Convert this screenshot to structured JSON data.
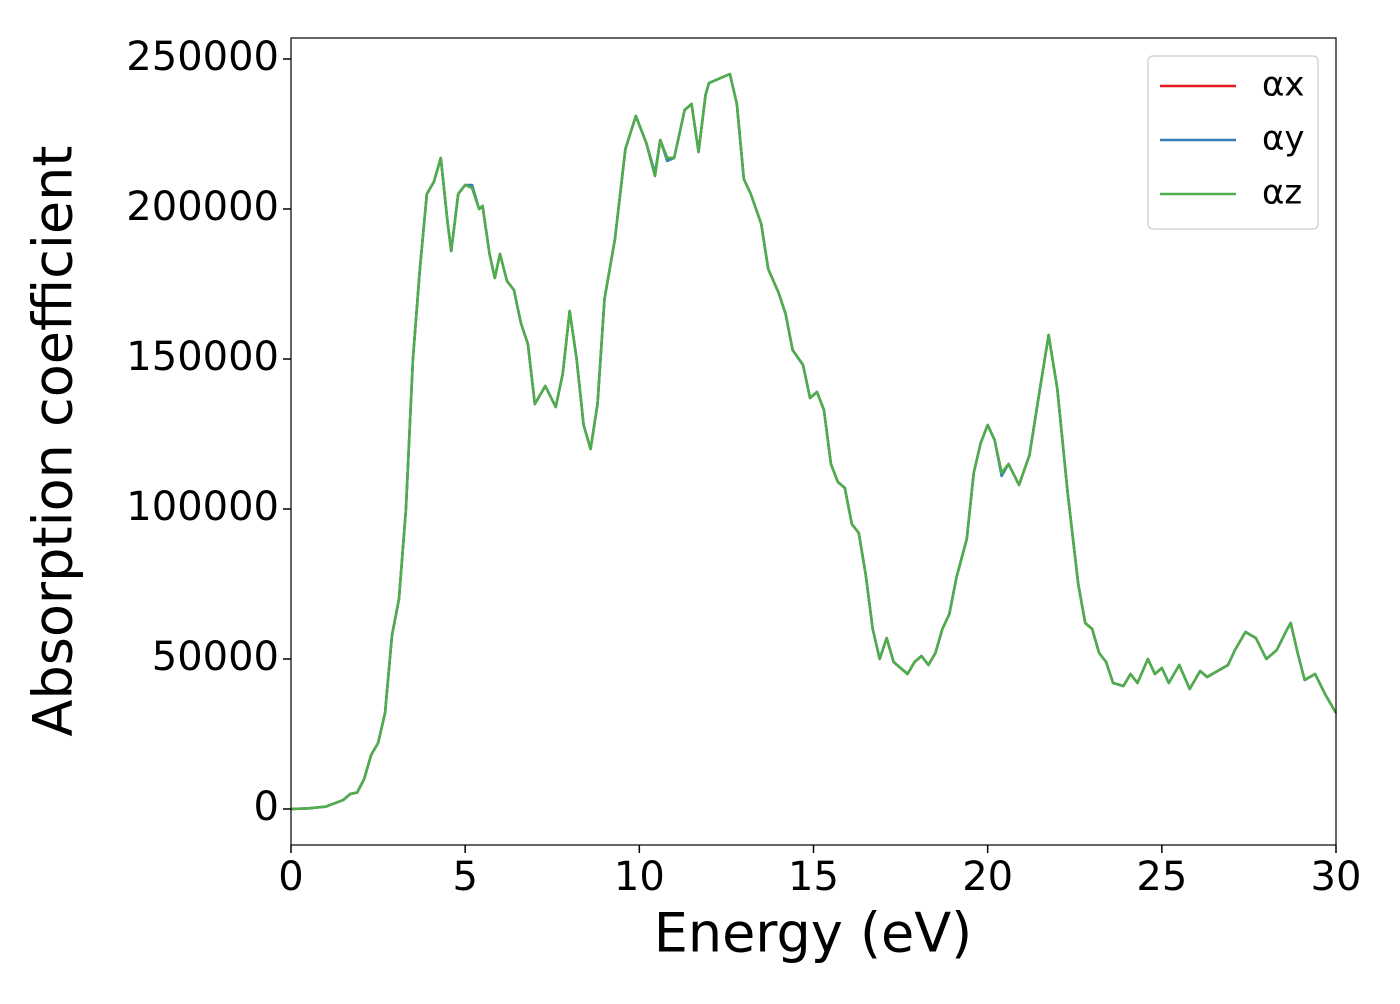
{
  "chart_data": {
    "type": "line",
    "xlabel": "Energy (eV)",
    "ylabel": "Absorption coefficient",
    "x": [
      0,
      0.5,
      1,
      1.5,
      1.7,
      1.9,
      2.1,
      2.3,
      2.5,
      2.7,
      2.9,
      3.1,
      3.3,
      3.5,
      3.7,
      3.9,
      4.1,
      4.3,
      4.5,
      4.6,
      4.8,
      5.0,
      5.2,
      5.4,
      5.5,
      5.7,
      5.85,
      6.0,
      6.2,
      6.4,
      6.6,
      6.8,
      7.0,
      7.3,
      7.6,
      7.8,
      8.0,
      8.2,
      8.4,
      8.6,
      8.8,
      9.0,
      9.3,
      9.6,
      9.9,
      10.1,
      10.2,
      10.45,
      10.6,
      10.8,
      11.0,
      11.3,
      11.5,
      11.7,
      11.9,
      12.0,
      12.2,
      12.6,
      12.8,
      13.0,
      13.2,
      13.5,
      13.7,
      14.0,
      14.2,
      14.4,
      14.7,
      14.9,
      15.1,
      15.3,
      15.5,
      15.7,
      15.9,
      16.1,
      16.3,
      16.5,
      16.7,
      16.9,
      17.1,
      17.3,
      17.5,
      17.7,
      17.9,
      18.1,
      18.3,
      18.5,
      18.7,
      18.9,
      19.1,
      19.4,
      19.6,
      19.8,
      20.0,
      20.2,
      20.4,
      20.6,
      20.9,
      21.2,
      21.5,
      21.75,
      22.0,
      22.3,
      22.6,
      22.8,
      23.0,
      23.2,
      23.4,
      23.6,
      23.9,
      24.1,
      24.3,
      24.6,
      24.8,
      25.0,
      25.2,
      25.5,
      25.8,
      26.1,
      26.3,
      26.6,
      26.9,
      27.1,
      27.4,
      27.7,
      28.0,
      28.3,
      28.6,
      28.7,
      28.9,
      29.1,
      29.4,
      29.7,
      30.0
    ],
    "series": [
      {
        "name": "αx",
        "color": "#e41a1c",
        "values": [
          0,
          200,
          800,
          3000,
          5000,
          5500,
          10000,
          18000,
          22000,
          32000,
          58000,
          70000,
          100000,
          150000,
          180000,
          205000,
          209000,
          217000,
          195000,
          186000,
          205000,
          208000,
          207000,
          200000,
          201000,
          185000,
          177000,
          185000,
          176000,
          173000,
          162000,
          155000,
          135000,
          141000,
          134000,
          145000,
          166000,
          150000,
          128000,
          120000,
          135000,
          170000,
          190000,
          220000,
          231000,
          225000,
          222000,
          211000,
          223000,
          217000,
          217000,
          233000,
          235000,
          219000,
          238000,
          242000,
          243000,
          245000,
          235000,
          210000,
          205000,
          195000,
          180000,
          172000,
          165000,
          153000,
          148000,
          137000,
          139000,
          133000,
          115000,
          109000,
          107000,
          95000,
          92000,
          78000,
          60000,
          50000,
          57000,
          49000,
          47000,
          45000,
          49000,
          51000,
          48000,
          52000,
          60000,
          65000,
          77000,
          90000,
          112000,
          122000,
          128000,
          123000,
          112000,
          115000,
          108000,
          118000,
          140000,
          158000,
          140000,
          105000,
          75000,
          62000,
          60000,
          52000,
          49000,
          42000,
          41000,
          45000,
          42000,
          50000,
          45000,
          47000,
          42000,
          48000,
          40000,
          46000,
          44000,
          46000,
          48000,
          53000,
          59000,
          57000,
          50000,
          53000,
          60000,
          62000,
          52000,
          43000,
          45000,
          38000,
          32000
        ]
      },
      {
        "name": "αy",
        "color": "#377eb8",
        "values": [
          0,
          200,
          800,
          3000,
          5000,
          5500,
          10000,
          18000,
          22000,
          32000,
          58000,
          70000,
          100000,
          150000,
          180000,
          205000,
          209000,
          217000,
          195000,
          186000,
          205000,
          208000,
          208000,
          200000,
          201000,
          185000,
          177000,
          185000,
          176000,
          173000,
          162000,
          155000,
          135000,
          141000,
          134000,
          145000,
          166000,
          150000,
          128000,
          120000,
          135000,
          170000,
          190000,
          220000,
          231000,
          225000,
          222000,
          212000,
          223000,
          216000,
          217000,
          233000,
          235000,
          219000,
          238000,
          242000,
          243000,
          245000,
          235000,
          210000,
          205000,
          195000,
          180000,
          172000,
          165000,
          153000,
          148000,
          137000,
          139000,
          133000,
          115000,
          109000,
          107000,
          95000,
          92000,
          78000,
          60000,
          50000,
          57000,
          49000,
          47000,
          45000,
          49000,
          51000,
          48000,
          52000,
          60000,
          65000,
          77000,
          90000,
          112000,
          122000,
          128000,
          123000,
          111000,
          115000,
          108000,
          118000,
          140000,
          158000,
          140000,
          105000,
          75000,
          62000,
          60000,
          52000,
          49000,
          42000,
          41000,
          45000,
          42000,
          50000,
          45000,
          47000,
          42000,
          48000,
          40000,
          46000,
          44000,
          46000,
          48000,
          53000,
          59000,
          57000,
          50000,
          53000,
          60000,
          62000,
          52000,
          43000,
          45000,
          38000,
          32000
        ]
      },
      {
        "name": "αz",
        "color": "#4daf4a",
        "values": [
          0,
          200,
          800,
          3000,
          5000,
          5500,
          10000,
          18000,
          22000,
          32000,
          58000,
          70000,
          100000,
          150000,
          180000,
          205000,
          209000,
          217000,
          195000,
          186000,
          205000,
          208000,
          207000,
          200000,
          201000,
          185000,
          177000,
          185000,
          176000,
          173000,
          162000,
          155000,
          135000,
          141000,
          134000,
          145000,
          166000,
          150000,
          128000,
          120000,
          135000,
          170000,
          190000,
          220000,
          231000,
          225000,
          222000,
          211000,
          223000,
          217000,
          217000,
          233000,
          235000,
          219000,
          238000,
          242000,
          243000,
          245000,
          235000,
          210000,
          205000,
          195000,
          180000,
          172000,
          165000,
          153000,
          148000,
          137000,
          139000,
          133000,
          115000,
          109000,
          107000,
          95000,
          92000,
          78000,
          60000,
          50000,
          57000,
          49000,
          47000,
          45000,
          49000,
          51000,
          48000,
          52000,
          60000,
          65000,
          77000,
          90000,
          112000,
          122000,
          128000,
          123000,
          112000,
          115000,
          108000,
          118000,
          140000,
          158000,
          140000,
          105000,
          75000,
          62000,
          60000,
          52000,
          49000,
          42000,
          41000,
          45000,
          42000,
          50000,
          45000,
          47000,
          42000,
          48000,
          40000,
          46000,
          44000,
          46000,
          48000,
          53000,
          59000,
          57000,
          50000,
          53000,
          60000,
          62000,
          52000,
          43000,
          45000,
          38000,
          32000
        ]
      }
    ],
    "xlim": [
      0,
      30
    ],
    "xticks": [
      0,
      5,
      10,
      15,
      20,
      25,
      30
    ],
    "ylim": [
      -12000,
      257000
    ],
    "yticks": [
      0,
      50000,
      100000,
      150000,
      200000,
      250000
    ],
    "legend": "upper right"
  }
}
